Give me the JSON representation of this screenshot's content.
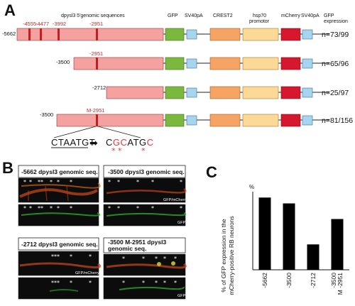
{
  "panels": {
    "a": "A",
    "b": "B",
    "c": "C"
  },
  "panel_a": {
    "headers": {
      "dpysl3": "dpysl3 5'genomic sequences",
      "gfp": "GFP",
      "sv40_1": "SV40pA",
      "crest2": "CREST2",
      "hsp70": "hsp70\npromotor",
      "mcherry": "mCherry",
      "sv40_2": "SV40pA",
      "gfp_expr": "GFP\nexpression"
    },
    "site_labels": [
      "-4555",
      "-4477",
      "-3992",
      "-2951"
    ],
    "rows": [
      {
        "start": "-5662",
        "ratio": "n=73/99"
      },
      {
        "start": "-3500",
        "site": "-2951",
        "ratio": "n=65/96"
      },
      {
        "start": "-2712",
        "ratio": "n=25/97"
      },
      {
        "start": "-3500",
        "site": "M-2951",
        "ratio": "n=81/156"
      }
    ],
    "mutation": {
      "original": "CTAATGT",
      "arrow": "➡",
      "mutant_prefix": "C",
      "mutant_red1": "GC",
      "mutant_mid": "ATG",
      "mutant_red2": "C",
      "stars": [
        "*",
        "*",
        "*"
      ]
    }
  },
  "panel_b": {
    "titles": {
      "p1": "-5662 dpysl3 genomic seq.",
      "p2": "-3500 dpysl3 genomic seq.",
      "p3": "-2712 dpysl3 genomic seq.",
      "p4a": "-3500 M-2951 dpysl3",
      "p4b": "genomic seq."
    },
    "channel_merge": "GFP/mCherry",
    "channel_gfp": "GFP"
  },
  "chart_data": {
    "type": "bar",
    "categories": [
      "-5662",
      "-3500",
      "-2712",
      "-3500 M -2951"
    ],
    "values": [
      74,
      68,
      26,
      52
    ],
    "ylabel": "% of GFP expression in the\nmCherry-positive RB neurons",
    "ylim": [
      0,
      80
    ],
    "unit_label": "%",
    "bar_color": "#000000"
  }
}
